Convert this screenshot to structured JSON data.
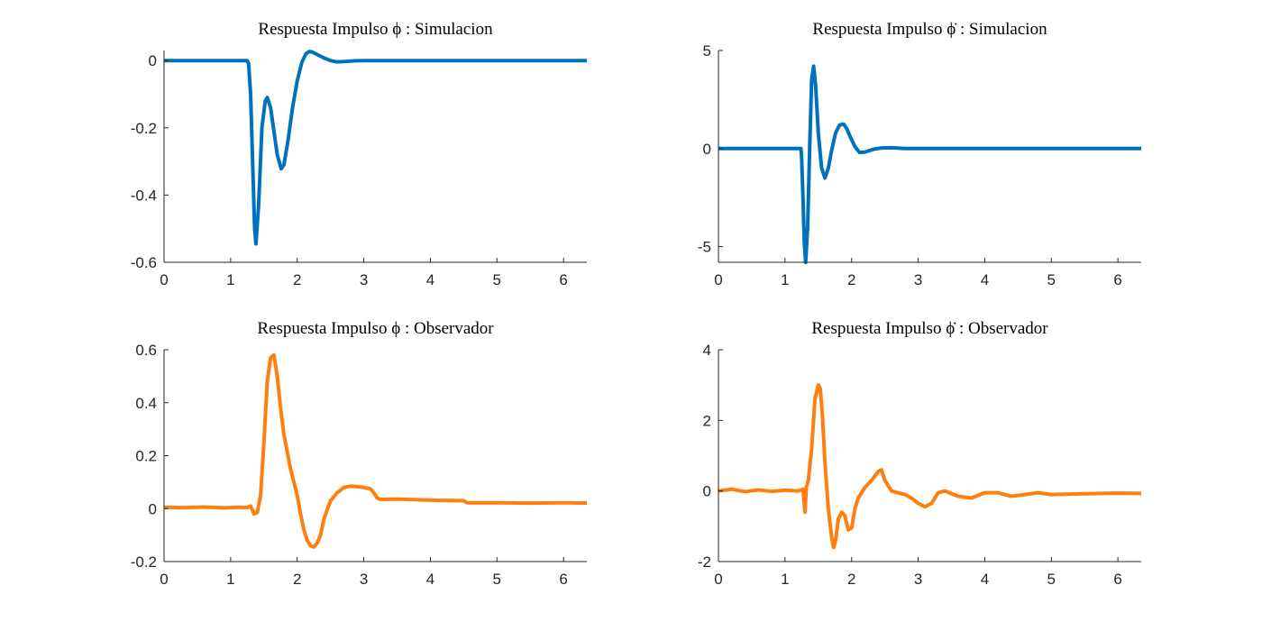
{
  "figure": {
    "background": "#ffffff"
  },
  "chart_data": [
    {
      "type": "line",
      "title": "Respuesta Impulso ϕ : Simulacion",
      "xlabel": "",
      "ylabel": "",
      "xlim": [
        0,
        6.35
      ],
      "ylim": [
        -0.6,
        0.03
      ],
      "xticks": [
        0,
        1,
        2,
        3,
        4,
        5,
        6
      ],
      "xtick_labels": [
        "0",
        "1",
        "2",
        "3",
        "4",
        "5",
        "6"
      ],
      "yticks": [
        -0.6,
        -0.4,
        -0.2,
        0
      ],
      "ytick_labels": [
        "-0.6",
        "-0.4",
        "-0.2",
        "0"
      ],
      "grid": false,
      "series": [
        {
          "color": "#0072BD",
          "x": [
            0,
            1.25,
            1.27,
            1.3,
            1.33,
            1.36,
            1.38,
            1.42,
            1.47,
            1.52,
            1.55,
            1.6,
            1.65,
            1.7,
            1.76,
            1.8,
            1.86,
            1.93,
            2.0,
            2.07,
            2.13,
            2.18,
            2.23,
            2.3,
            2.4,
            2.5,
            2.6,
            2.7,
            2.85,
            3.0,
            3.3,
            4.0,
            5.0,
            6.35
          ],
          "y": [
            0,
            0,
            -0.01,
            -0.1,
            -0.3,
            -0.5,
            -0.545,
            -0.43,
            -0.2,
            -0.12,
            -0.11,
            -0.14,
            -0.21,
            -0.28,
            -0.322,
            -0.31,
            -0.24,
            -0.14,
            -0.06,
            -0.005,
            0.02,
            0.027,
            0.025,
            0.018,
            0.008,
            0.0,
            -0.004,
            -0.003,
            -0.001,
            0,
            0,
            0,
            0,
            0
          ]
        }
      ]
    },
    {
      "type": "line",
      "title": "Respuesta Impulso ϕ̇ : Simulacion",
      "xlabel": "",
      "ylabel": "",
      "xlim": [
        0,
        6.35
      ],
      "ylim": [
        -5.8,
        5.0
      ],
      "xticks": [
        0,
        1,
        2,
        3,
        4,
        5,
        6
      ],
      "xtick_labels": [
        "0",
        "1",
        "2",
        "3",
        "4",
        "5",
        "6"
      ],
      "yticks": [
        -5,
        0,
        5
      ],
      "ytick_labels": [
        "-5",
        "0",
        "5"
      ],
      "grid": false,
      "series": [
        {
          "color": "#0072BD",
          "x": [
            0,
            1.24,
            1.25,
            1.27,
            1.29,
            1.31,
            1.34,
            1.37,
            1.4,
            1.43,
            1.46,
            1.5,
            1.55,
            1.6,
            1.65,
            1.7,
            1.76,
            1.82,
            1.88,
            1.93,
            1.98,
            2.05,
            2.12,
            2.2,
            2.27,
            2.35,
            2.45,
            2.6,
            2.8,
            3.0,
            4.0,
            5.0,
            6.35
          ],
          "y": [
            0,
            0,
            -0.5,
            -2.5,
            -4.8,
            -5.8,
            -4.0,
            0.0,
            3.5,
            4.2,
            3.2,
            0.8,
            -1.0,
            -1.5,
            -1.0,
            -0.1,
            0.8,
            1.2,
            1.25,
            1.0,
            0.6,
            0.1,
            -0.2,
            -0.18,
            -0.1,
            -0.02,
            0.03,
            0.04,
            0.0,
            0,
            0,
            0,
            0
          ]
        }
      ]
    },
    {
      "type": "line",
      "title": "Respuesta Impulso ϕ : Observador",
      "xlabel": "",
      "ylabel": "",
      "xlim": [
        0,
        6.35
      ],
      "ylim": [
        -0.2,
        0.6
      ],
      "xticks": [
        0,
        1,
        2,
        3,
        4,
        5,
        6
      ],
      "xtick_labels": [
        "0",
        "1",
        "2",
        "3",
        "4",
        "5",
        "6"
      ],
      "yticks": [
        -0.2,
        0,
        0.2,
        0.4,
        0.6
      ],
      "ytick_labels": [
        "-0.2",
        "0",
        "0.2",
        "0.4",
        "0.6"
      ],
      "grid": false,
      "series": [
        {
          "color": "#FF7F0E",
          "x": [
            0,
            0.3,
            0.6,
            0.9,
            1.1,
            1.25,
            1.3,
            1.35,
            1.4,
            1.45,
            1.5,
            1.55,
            1.6,
            1.65,
            1.7,
            1.75,
            1.8,
            1.9,
            2.0,
            2.05,
            2.1,
            2.15,
            2.2,
            2.25,
            2.3,
            2.35,
            2.4,
            2.5,
            2.6,
            2.7,
            2.8,
            2.9,
            3.0,
            3.1,
            3.15,
            3.2,
            3.25,
            3.5,
            4.0,
            4.5,
            4.55,
            5.0,
            5.5,
            6.0,
            6.35
          ],
          "y": [
            0.005,
            0.004,
            0.006,
            0.003,
            0.005,
            0.004,
            0.01,
            -0.02,
            -0.015,
            0.05,
            0.25,
            0.48,
            0.57,
            0.58,
            0.5,
            0.38,
            0.28,
            0.15,
            0.05,
            -0.02,
            -0.08,
            -0.12,
            -0.14,
            -0.145,
            -0.13,
            -0.1,
            -0.04,
            0.03,
            0.06,
            0.08,
            0.085,
            0.083,
            0.08,
            0.075,
            0.06,
            0.04,
            0.035,
            0.036,
            0.032,
            0.03,
            0.022,
            0.022,
            0.021,
            0.022,
            0.021
          ]
        }
      ]
    },
    {
      "type": "line",
      "title": "Respuesta Impulso ϕ̇ : Observador",
      "xlabel": "",
      "ylabel": "",
      "xlim": [
        0,
        6.35
      ],
      "ylim": [
        -2,
        4
      ],
      "xticks": [
        0,
        1,
        2,
        3,
        4,
        5,
        6
      ],
      "xtick_labels": [
        "0",
        "1",
        "2",
        "3",
        "4",
        "5",
        "6"
      ],
      "yticks": [
        -2,
        0,
        2,
        4
      ],
      "ytick_labels": [
        "-2",
        "0",
        "2",
        "4"
      ],
      "grid": false,
      "series": [
        {
          "color": "#FF7F0E",
          "x": [
            0,
            0.2,
            0.4,
            0.6,
            0.8,
            1.0,
            1.2,
            1.27,
            1.3,
            1.32,
            1.35,
            1.4,
            1.45,
            1.5,
            1.53,
            1.56,
            1.6,
            1.65,
            1.7,
            1.73,
            1.76,
            1.8,
            1.85,
            1.9,
            1.95,
            2.0,
            2.05,
            2.1,
            2.2,
            2.3,
            2.4,
            2.45,
            2.5,
            2.6,
            2.7,
            2.8,
            2.9,
            3.0,
            3.1,
            3.2,
            3.3,
            3.4,
            3.6,
            3.8,
            4.0,
            4.2,
            4.4,
            4.6,
            4.8,
            5.0,
            5.5,
            6.0,
            6.35
          ],
          "y": [
            0.0,
            0.05,
            -0.02,
            0.03,
            -0.01,
            0.02,
            0.0,
            0.05,
            -0.6,
            0.1,
            0.3,
            1.2,
            2.6,
            3.0,
            2.9,
            2.2,
            0.8,
            -0.5,
            -1.3,
            -1.6,
            -1.4,
            -0.8,
            -0.6,
            -0.7,
            -1.1,
            -1.05,
            -0.5,
            -0.2,
            0.1,
            0.3,
            0.55,
            0.6,
            0.3,
            0.0,
            -0.05,
            -0.1,
            -0.2,
            -0.35,
            -0.45,
            -0.35,
            -0.05,
            0.0,
            -0.15,
            -0.2,
            -0.05,
            -0.05,
            -0.15,
            -0.1,
            -0.05,
            -0.1,
            -0.08,
            -0.06,
            -0.07
          ]
        }
      ]
    }
  ]
}
